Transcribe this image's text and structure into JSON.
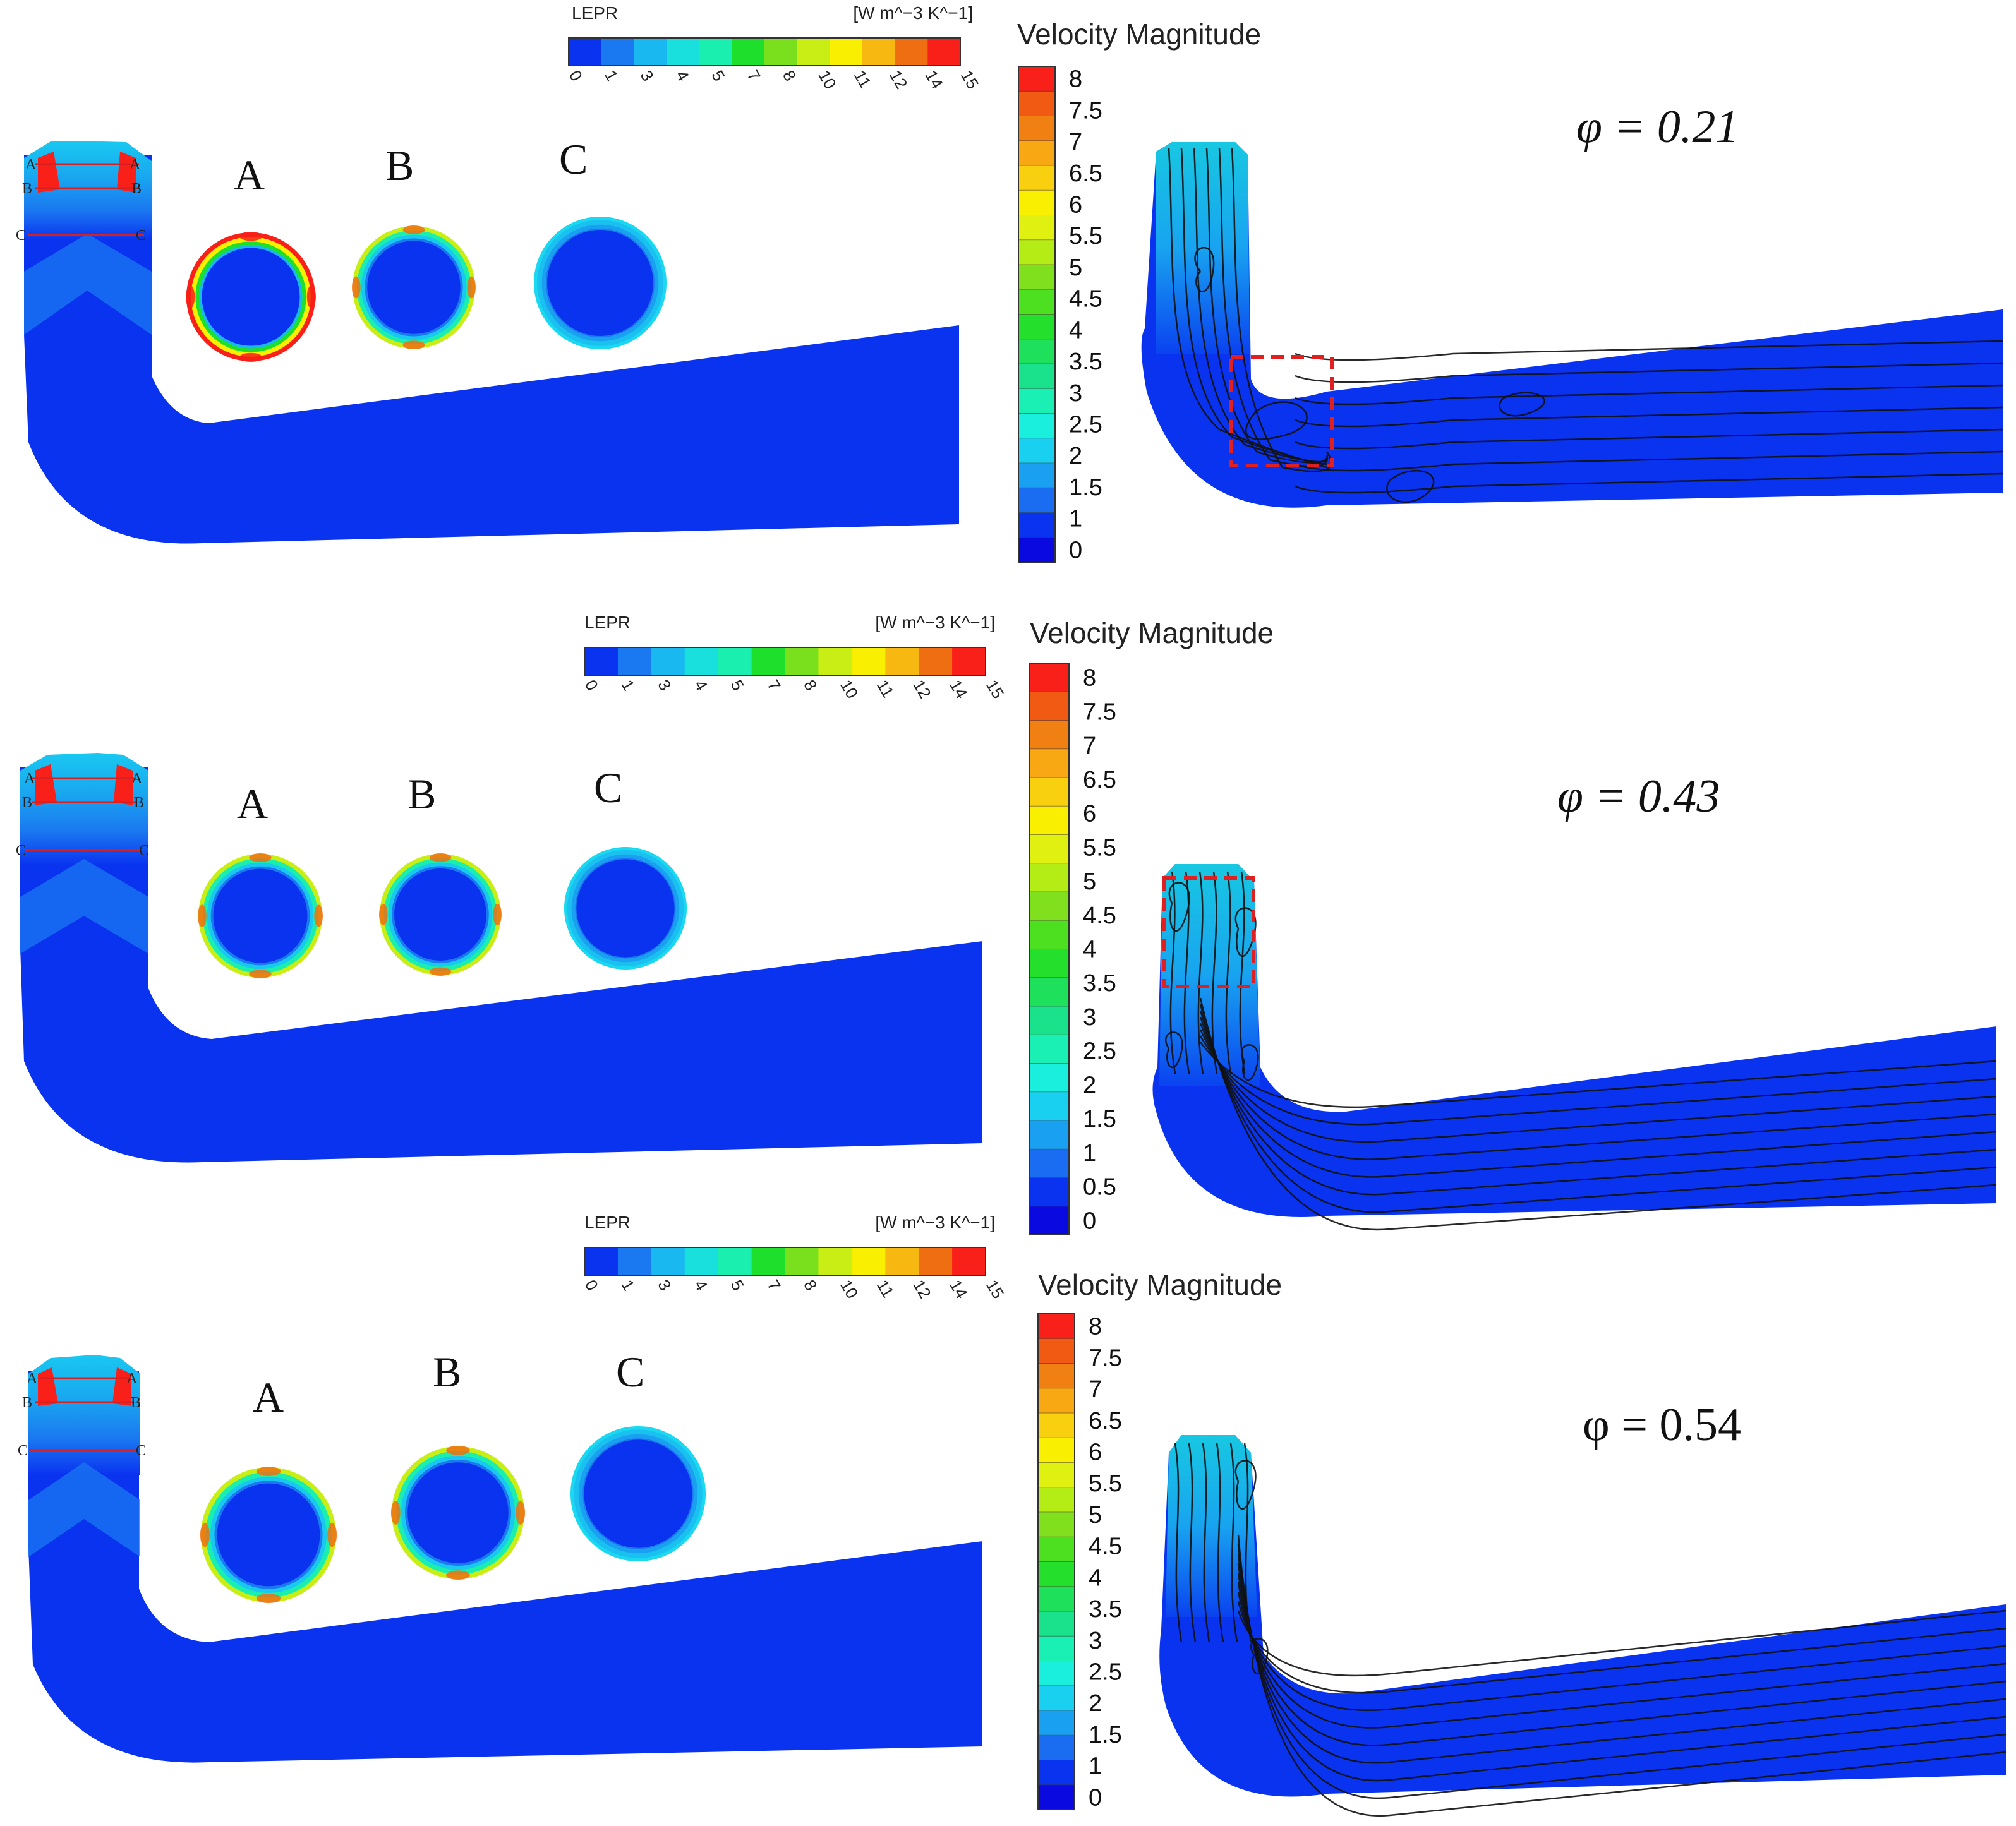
{
  "colors": {
    "background": "#ffffff",
    "domain_blue": "#0a33f0",
    "streamline": "#111111",
    "section_line": "#d92020",
    "highlight_box": "#e02020",
    "lepr_scale": [
      "#0a33f0",
      "#1a78f0",
      "#19b8f0",
      "#19e0dc",
      "#1aefb0",
      "#1ee02c",
      "#7ae01e",
      "#c8ee16",
      "#f8f000",
      "#f8b812",
      "#f06e12",
      "#f82018"
    ],
    "velocity_scale": [
      "#0a0ae0",
      "#0a33f0",
      "#1a6cf0",
      "#1aa0f0",
      "#19d0f0",
      "#19efdc",
      "#1aefb4",
      "#1ae28c",
      "#1ee05a",
      "#24e02c",
      "#4ce020",
      "#80e01e",
      "#b4ec16",
      "#e0f010",
      "#f8f000",
      "#f8d010",
      "#f8a812",
      "#f08012",
      "#f05a12",
      "#f82018"
    ]
  },
  "lepr_legend": {
    "title": "LEPR",
    "units": "[W m^−3 K^−1]",
    "ticks": [
      "0",
      "1",
      "3",
      "4",
      "5",
      "7",
      "8",
      "10",
      "11",
      "12",
      "14",
      "15"
    ]
  },
  "velocity_legend": {
    "title": "Velocity Magnitude",
    "ticks": [
      "0",
      "0.5",
      "1",
      "1.5",
      "2",
      "2.5",
      "3",
      "3.5",
      "4",
      "4.5",
      "5",
      "5.5",
      "6",
      "6.5",
      "7",
      "7.5",
      "8"
    ],
    "ticks_no_half": [
      "0",
      "1",
      "1.5",
      "2",
      "2.5",
      "3",
      "3.5",
      "4",
      "4.5",
      "5",
      "5.5",
      "6",
      "6.5",
      "7",
      "7.5",
      "8"
    ]
  },
  "section_letters": [
    "A",
    "B",
    "C"
  ],
  "section_labels": {
    "a": "A",
    "b": "B",
    "c": "C"
  },
  "panels": [
    {
      "phi_label": "φ = 0.21",
      "section_A_ring": "high",
      "section_B_ring": "medium",
      "section_C_ring": "low",
      "highlight": "elbow",
      "velocity_legend_variant": "ticks_no_half"
    },
    {
      "phi_label": "φ = 0.43",
      "section_A_ring": "medium",
      "section_B_ring": "medium",
      "section_C_ring": "low",
      "highlight": "inlet",
      "velocity_legend_variant": "ticks"
    },
    {
      "phi_label": "φ = 0.54",
      "section_A_ring": "medium",
      "section_B_ring": "medium",
      "section_C_ring": "low",
      "highlight": "none",
      "velocity_legend_variant": "ticks_no_half"
    }
  ]
}
